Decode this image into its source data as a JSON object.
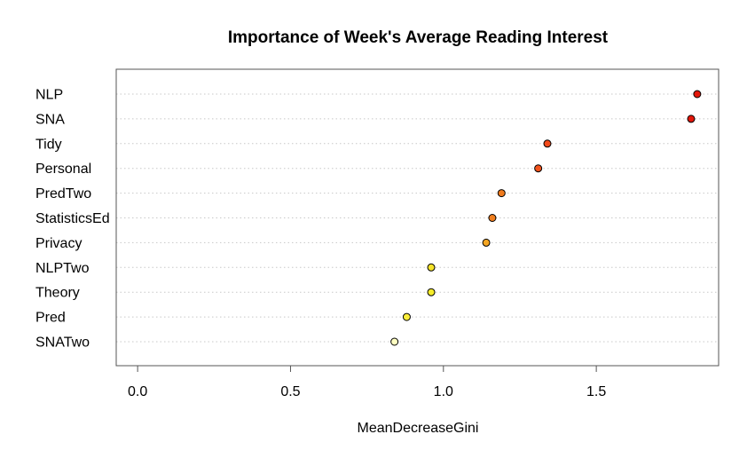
{
  "chart_data": {
    "type": "scatter",
    "title": "Importance of Week's Average Reading Interest",
    "xlabel": "MeanDecreaseGini",
    "ylabel": "",
    "xlim": [
      -0.07,
      1.9
    ],
    "x_ticks": [
      "0.0",
      "0.5",
      "1.0",
      "1.5"
    ],
    "x_tick_values": [
      0.0,
      0.5,
      1.0,
      1.5
    ],
    "grid": "dotted horizontal",
    "categories": [
      "NLP",
      "SNA",
      "Tidy",
      "Personal",
      "PredTwo",
      "StatisticsEd",
      "Privacy",
      "NLPTwo",
      "Theory",
      "Pred",
      "SNATwo"
    ],
    "values": [
      1.83,
      1.81,
      1.34,
      1.31,
      1.19,
      1.16,
      1.14,
      0.96,
      0.96,
      0.88,
      0.84
    ],
    "point_colors": [
      "#e3170a",
      "#e3170a",
      "#f24a1a",
      "#f2531c",
      "#f07b1e",
      "#f07e1e",
      "#f5a623",
      "#f5e32a",
      "#f5ec2a",
      "#fbee3a",
      "#ffffc2"
    ],
    "point_outline": "#000000"
  }
}
